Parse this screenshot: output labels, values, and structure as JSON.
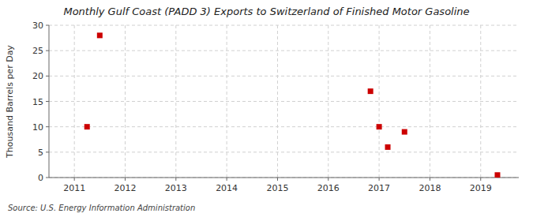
{
  "chart_data": {
    "type": "scatter",
    "title": "Monthly Gulf Coast (PADD 3) Exports to Switzerland of Finished Motor Gasoline",
    "ylabel": "Thousand Barrels per Day",
    "source": "Source: U.S. Energy Information Administration",
    "x": [
      2011.25,
      2011.5,
      2016.83,
      2017.0,
      2017.17,
      2017.5,
      2019.33
    ],
    "values": [
      10,
      28,
      17,
      10,
      6,
      9,
      0.5
    ],
    "color": "#cc0000",
    "marker": "square",
    "xlim": [
      2010.5,
      2019.75
    ],
    "ylim": [
      0,
      30
    ],
    "xticks": [
      2011,
      2012,
      2013,
      2014,
      2015,
      2016,
      2017,
      2018,
      2019
    ],
    "yticks": [
      0,
      5,
      10,
      15,
      20,
      25,
      30
    ],
    "grid": true
  }
}
